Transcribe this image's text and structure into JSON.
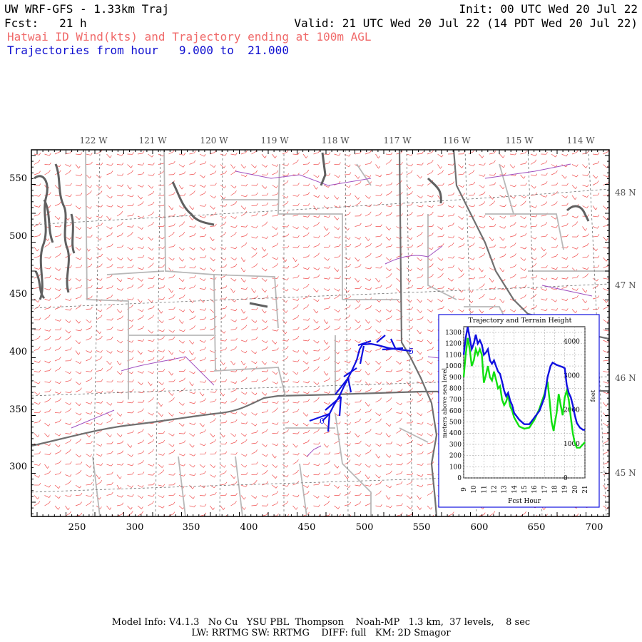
{
  "header": {
    "model_title": "UW WRF-GFS - 1.33km Traj",
    "init": "Init: 00 UTC Wed 20 Jul 22",
    "fcst": "Fcst:   21 h",
    "valid": "Valid: 21 UTC Wed 20 Jul 22 (14 PDT Wed 20 Jul 22)",
    "subtitle": "Hatwai ID Wind(kts) and Trajectory ending at 100m AGL",
    "traj_range": "Trajectories from hour   9.000 to  21.000"
  },
  "map": {
    "lon_labels": [
      "122 W",
      "121 W",
      "120 W",
      "119 W",
      "118 W",
      "117 W",
      "116 W",
      "115 W",
      "114 W"
    ],
    "lat_labels": [
      "48 N",
      "47 N",
      "46 N",
      "45 N"
    ],
    "x_ticks": [
      "250",
      "300",
      "350",
      "400",
      "450",
      "500",
      "550",
      "600",
      "650",
      "700"
    ],
    "y_ticks": [
      "550",
      "500",
      "450",
      "400",
      "350",
      "300"
    ],
    "colors": {
      "wind_barbs": "#f05050",
      "county_lines": "#b0b0b0",
      "state_lines": "#707070",
      "rivers": "#a050c0",
      "trajectory": "#1010e0"
    },
    "trajectory_labels": [
      "0",
      "5"
    ]
  },
  "inset": {
    "title": "Trajectory and Terrain Height",
    "ylabel_left": "meters above sea level",
    "ylabel_right": "feet",
    "xlabel": "Fcst Hour",
    "y_ticks_m": [
      "0",
      "100",
      "200",
      "300",
      "400",
      "500",
      "600",
      "700",
      "800",
      "900",
      "1000",
      "1100",
      "1200",
      "1300"
    ],
    "y_ticks_ft": [
      "0",
      "1000",
      "2000",
      "3000",
      "4000"
    ],
    "x_ticks": [
      "9",
      "10",
      "11",
      "12",
      "13",
      "14",
      "15",
      "16",
      "17",
      "18",
      "19",
      "20",
      "21"
    ]
  },
  "chart_data": {
    "type": "line",
    "title": "Trajectory and Terrain Height",
    "xlabel": "Fcst Hour",
    "ylabel": "meters above sea level",
    "xlim": [
      9,
      21
    ],
    "ylim": [
      0,
      1300
    ],
    "series": [
      {
        "color": "#1010e0",
        "x": [
          9,
          9.2,
          9.4,
          9.6,
          9.8,
          10,
          10.2,
          10.4,
          10.6,
          10.8,
          11,
          11.2,
          11.4,
          11.6,
          11.8,
          12,
          12.2,
          12.4,
          12.6,
          12.8,
          13,
          13.2,
          13.4,
          13.6,
          13.8,
          14,
          14.5,
          15,
          15.5,
          16,
          16.5,
          17,
          17.3,
          17.6,
          17.8,
          18,
          18.2,
          18.5,
          18.8,
          19,
          19.2,
          19.4,
          19.6,
          19.8,
          20,
          20.2,
          20.5,
          20.8,
          21
        ],
        "values": [
          1100,
          1250,
          1350,
          1250,
          1150,
          1200,
          1280,
          1200,
          1230,
          1190,
          1100,
          1120,
          1150,
          1050,
          1020,
          1050,
          1000,
          950,
          930,
          860,
          780,
          730,
          760,
          690,
          650,
          580,
          520,
          480,
          480,
          540,
          600,
          720,
          900,
          1000,
          1030,
          1020,
          1010,
          1000,
          990,
          980,
          830,
          760,
          720,
          650,
          560,
          490,
          450,
          430,
          430
        ]
      },
      {
        "color": "#10e010",
        "x": [
          9,
          9.2,
          9.4,
          9.6,
          9.8,
          10,
          10.2,
          10.4,
          10.6,
          10.8,
          11,
          11.2,
          11.4,
          11.6,
          11.8,
          12,
          12.2,
          12.4,
          12.6,
          12.8,
          13,
          13.2,
          13.4,
          13.6,
          13.8,
          14,
          14.5,
          15,
          15.5,
          16,
          16.5,
          17,
          17.3,
          17.5,
          17.7,
          17.9,
          18,
          18.2,
          18.4,
          18.6,
          18.8,
          19,
          19.2,
          19.4,
          19.6,
          19.8,
          20,
          20.2,
          20.5,
          20.8,
          21
        ],
        "values": [
          900,
          1100,
          1250,
          1150,
          1000,
          1050,
          1150,
          1100,
          1150,
          1100,
          850,
          920,
          1000,
          900,
          870,
          950,
          880,
          800,
          820,
          700,
          650,
          680,
          740,
          640,
          600,
          540,
          460,
          440,
          450,
          520,
          620,
          750,
          860,
          700,
          500,
          420,
          480,
          580,
          750,
          650,
          560,
          720,
          780,
          700,
          540,
          400,
          310,
          270,
          270,
          300,
          320
        ]
      }
    ]
  },
  "footer": {
    "line1": "Model Info: V4.1.3   No Cu   YSU PBL  Thompson    Noah-MP   1.3 km,  37 levels,    8 sec",
    "line2": "LW: RRTMG SW: RRTMG    DIFF: full   KM: 2D Smagor"
  }
}
